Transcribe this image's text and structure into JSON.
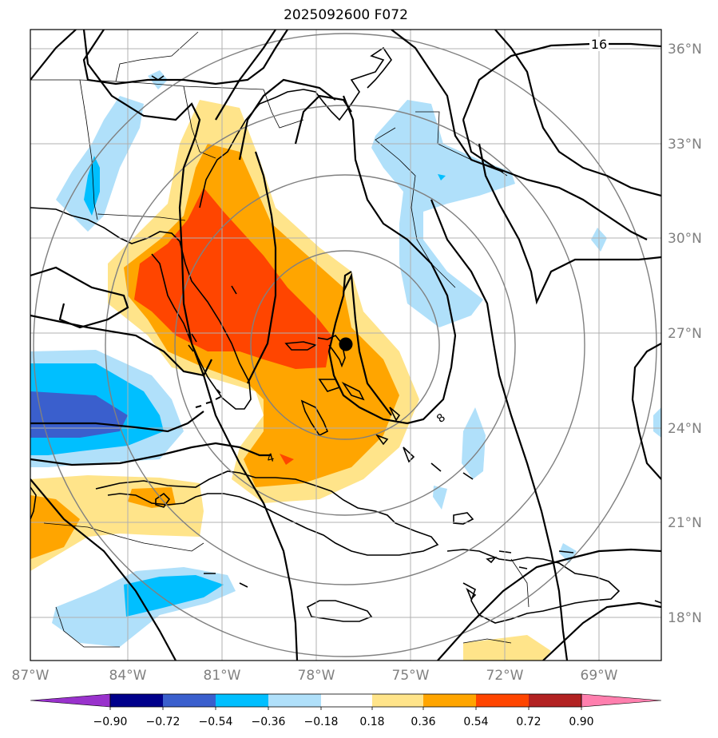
{
  "title": "2025092600 F072",
  "map": {
    "lon_ticks": [
      "87°W",
      "84°W",
      "81°W",
      "78°W",
      "75°W",
      "72°W",
      "69°W"
    ],
    "lat_ticks": [
      "36°N",
      "33°N",
      "30°N",
      "27°N",
      "24°N",
      "21°N",
      "18°N"
    ],
    "contour_labels": [
      "16",
      "8",
      "4"
    ],
    "storm_center": "storm-center-marker"
  },
  "colorbar": {
    "ticks": [
      "−0.90",
      "−0.72",
      "−0.54",
      "−0.36",
      "−0.18",
      "0.18",
      "0.36",
      "0.54",
      "0.72",
      "0.90"
    ],
    "colors": [
      "#9932cc",
      "#00008b",
      "#3a5fcd",
      "#00bfff",
      "#b0e0fa",
      "#ffffff",
      "#ffe48a",
      "#ffa500",
      "#ff4500",
      "#b22222",
      "#ff7fae"
    ]
  }
}
